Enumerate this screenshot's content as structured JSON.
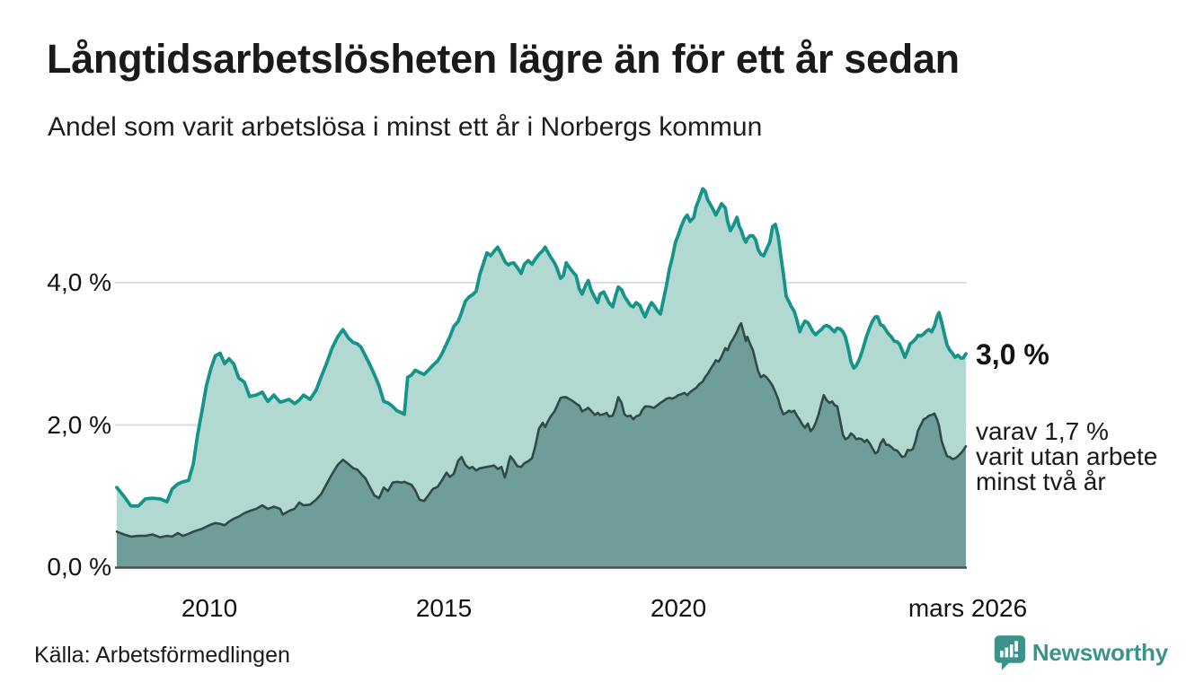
{
  "header": {
    "title": "Långtidsarbetslösheten lägre än för ett år sedan",
    "subtitle": "Andel som varit arbetslösa i minst ett år i Norbergs kommun"
  },
  "footer": {
    "source": "Källa: Arbetsförmedlingen",
    "logo_text": "Newsworthy",
    "logo_icon": "newsworthy-bubble-bar-chart-icon"
  },
  "colors": {
    "series1_line": "#17948a",
    "series1_fill": "#b2d8d2",
    "series2_line": "#2f4b48",
    "series2_fill": "#6f9e9a",
    "gridline": "#dedede",
    "axis_line": "#4d4d4d",
    "text": "#1a1a1a",
    "logo": "#3b948c",
    "background": "#ffffff"
  },
  "chart_data": {
    "type": "area",
    "title": "Långtidsarbetslösheten lägre än för ett år sedan",
    "subtitle": "Andel som varit arbetslösa i minst ett år i Norbergs kommun",
    "unit": "%",
    "grid": "horizontal-only",
    "x_range": [
      2008.03,
      2026.13
    ],
    "ylim": [
      0,
      5.5
    ],
    "y_ticks": [
      {
        "value": 0,
        "label": "0,0 %"
      },
      {
        "value": 2,
        "label": "2,0 %"
      },
      {
        "value": 4,
        "label": "4,0 %"
      }
    ],
    "x_ticks": [
      {
        "value": 2010,
        "label": "2010"
      },
      {
        "value": 2015,
        "label": "2015"
      },
      {
        "value": 2020,
        "label": "2020"
      },
      {
        "value": 2026.17,
        "label": "mars 2026"
      }
    ],
    "annotations": {
      "series1_end_label": "3,0 %",
      "series2_end_label_lines": [
        "varav 1,7 %",
        "varit utan arbete",
        "minst två år"
      ]
    },
    "series_meta": [
      {
        "name": "Andel som varit arbetslösa i minst ett år",
        "line": "#17948a",
        "fill": "#b2d8d2",
        "end_value": 3.0
      },
      {
        "name": "varav andel som varit utan arbete minst två år",
        "line": "#2f4b48",
        "fill": "#6f9e9a",
        "end_value": 1.7
      }
    ],
    "points": [
      [
        2008.03,
        1.12,
        0.5
      ],
      [
        2008.18,
        1.0,
        0.46
      ],
      [
        2008.33,
        0.86,
        0.43
      ],
      [
        2008.49,
        0.86,
        0.44
      ],
      [
        2008.64,
        0.96,
        0.44
      ],
      [
        2008.79,
        0.97,
        0.46
      ],
      [
        2008.95,
        0.96,
        0.42
      ],
      [
        2009.1,
        0.92,
        0.44
      ],
      [
        2009.21,
        1.1,
        0.43
      ],
      [
        2009.33,
        1.17,
        0.48
      ],
      [
        2009.44,
        1.2,
        0.44
      ],
      [
        2009.56,
        1.22,
        0.47
      ],
      [
        2009.66,
        1.45,
        0.5
      ],
      [
        2009.75,
        1.85,
        0.52
      ],
      [
        2009.85,
        2.21,
        0.54
      ],
      [
        2009.94,
        2.55,
        0.57
      ],
      [
        2010.04,
        2.8,
        0.6
      ],
      [
        2010.13,
        2.97,
        0.62
      ],
      [
        2010.23,
        3.01,
        0.61
      ],
      [
        2010.33,
        2.86,
        0.59
      ],
      [
        2010.42,
        2.93,
        0.64
      ],
      [
        2010.52,
        2.86,
        0.68
      ],
      [
        2010.63,
        2.66,
        0.71
      ],
      [
        2010.75,
        2.6,
        0.76
      ],
      [
        2010.86,
        2.4,
        0.79
      ],
      [
        2011.0,
        2.42,
        0.82
      ],
      [
        2011.13,
        2.46,
        0.87
      ],
      [
        2011.25,
        2.33,
        0.82
      ],
      [
        2011.38,
        2.42,
        0.85
      ],
      [
        2011.51,
        2.32,
        0.82
      ],
      [
        2011.57,
        2.33,
        0.74
      ],
      [
        2011.7,
        2.36,
        0.79
      ],
      [
        2011.82,
        2.3,
        0.82
      ],
      [
        2011.92,
        2.35,
        0.91
      ],
      [
        2012.01,
        2.42,
        0.87
      ],
      [
        2012.15,
        2.36,
        0.88
      ],
      [
        2012.28,
        2.49,
        0.95
      ],
      [
        2012.39,
        2.68,
        1.03
      ],
      [
        2012.51,
        2.88,
        1.18
      ],
      [
        2012.62,
        3.08,
        1.31
      ],
      [
        2012.74,
        3.24,
        1.44
      ],
      [
        2012.85,
        3.34,
        1.51
      ],
      [
        2012.97,
        3.22,
        1.45
      ],
      [
        2013.07,
        3.16,
        1.39
      ],
      [
        2013.16,
        3.14,
        1.37
      ],
      [
        2013.24,
        3.09,
        1.31
      ],
      [
        2013.33,
        2.97,
        1.25
      ],
      [
        2013.43,
        2.84,
        1.12
      ],
      [
        2013.52,
        2.71,
        1.01
      ],
      [
        2013.62,
        2.55,
        0.97
      ],
      [
        2013.72,
        2.33,
        1.12
      ],
      [
        2013.81,
        2.31,
        1.07
      ],
      [
        2013.91,
        2.26,
        1.19
      ],
      [
        2014.0,
        2.2,
        1.2
      ],
      [
        2014.1,
        2.17,
        1.19
      ],
      [
        2014.16,
        2.15,
        1.2
      ],
      [
        2014.23,
        2.67,
        1.18
      ],
      [
        2014.31,
        2.7,
        1.16
      ],
      [
        2014.39,
        2.77,
        1.08
      ],
      [
        2014.48,
        2.74,
        0.95
      ],
      [
        2014.58,
        2.71,
        0.93
      ],
      [
        2014.67,
        2.77,
        1.01
      ],
      [
        2014.77,
        2.84,
        1.1
      ],
      [
        2014.87,
        2.9,
        1.13
      ],
      [
        2014.96,
        3.0,
        1.22
      ],
      [
        2015.06,
        3.14,
        1.33
      ],
      [
        2015.13,
        3.24,
        1.27
      ],
      [
        2015.21,
        3.38,
        1.31
      ],
      [
        2015.31,
        3.46,
        1.5
      ],
      [
        2015.38,
        3.58,
        1.55
      ],
      [
        2015.46,
        3.74,
        1.44
      ],
      [
        2015.54,
        3.8,
        1.39
      ],
      [
        2015.61,
        3.83,
        1.41
      ],
      [
        2015.69,
        3.88,
        1.36
      ],
      [
        2015.77,
        4.12,
        1.39
      ],
      [
        2015.84,
        4.26,
        1.4
      ],
      [
        2015.92,
        4.42,
        1.41
      ],
      [
        2016.0,
        4.38,
        1.42
      ],
      [
        2016.07,
        4.44,
        1.43
      ],
      [
        2016.15,
        4.5,
        1.38
      ],
      [
        2016.23,
        4.4,
        1.41
      ],
      [
        2016.3,
        4.3,
        1.26
      ],
      [
        2016.34,
        4.27,
        1.35
      ],
      [
        2016.38,
        4.25,
        1.47
      ],
      [
        2016.42,
        4.27,
        1.56
      ],
      [
        2016.49,
        4.28,
        1.5
      ],
      [
        2016.57,
        4.21,
        1.42
      ],
      [
        2016.65,
        4.13,
        1.41
      ],
      [
        2016.72,
        4.26,
        1.46
      ],
      [
        2016.8,
        4.31,
        1.49
      ],
      [
        2016.88,
        4.26,
        1.53
      ],
      [
        2016.95,
        4.33,
        1.7
      ],
      [
        2017.03,
        4.4,
        1.95
      ],
      [
        2017.11,
        4.45,
        2.03
      ],
      [
        2017.16,
        4.5,
        1.97
      ],
      [
        2017.22,
        4.43,
        2.05
      ],
      [
        2017.28,
        4.36,
        2.12
      ],
      [
        2017.36,
        4.28,
        2.19
      ],
      [
        2017.41,
        4.21,
        2.26
      ],
      [
        2017.49,
        4.06,
        2.38
      ],
      [
        2017.55,
        4.1,
        2.39
      ],
      [
        2017.61,
        4.28,
        2.39
      ],
      [
        2017.66,
        4.23,
        2.37
      ],
      [
        2017.74,
        4.16,
        2.34
      ],
      [
        2017.82,
        4.1,
        2.3
      ],
      [
        2017.89,
        3.91,
        2.27
      ],
      [
        2017.95,
        3.84,
        2.19
      ],
      [
        2018.03,
        3.97,
        2.22
      ],
      [
        2018.08,
        4.03,
        2.24
      ],
      [
        2018.14,
        3.9,
        2.2
      ],
      [
        2018.22,
        3.79,
        2.14
      ],
      [
        2018.28,
        3.72,
        2.17
      ],
      [
        2018.33,
        3.84,
        2.14
      ],
      [
        2018.41,
        3.87,
        2.15
      ],
      [
        2018.47,
        3.79,
        2.17
      ],
      [
        2018.52,
        3.72,
        2.12
      ],
      [
        2018.6,
        3.66,
        2.13
      ],
      [
        2018.66,
        3.81,
        2.24
      ],
      [
        2018.72,
        3.94,
        2.39
      ],
      [
        2018.79,
        3.9,
        2.31
      ],
      [
        2018.85,
        3.81,
        2.15
      ],
      [
        2018.91,
        3.75,
        2.12
      ],
      [
        2018.98,
        3.68,
        2.13
      ],
      [
        2019.04,
        3.66,
        2.08
      ],
      [
        2019.1,
        3.72,
        2.12
      ],
      [
        2019.18,
        3.68,
        2.14
      ],
      [
        2019.23,
        3.6,
        2.21
      ],
      [
        2019.29,
        3.52,
        2.26
      ],
      [
        2019.37,
        3.65,
        2.26
      ],
      [
        2019.43,
        3.72,
        2.25
      ],
      [
        2019.48,
        3.68,
        2.24
      ],
      [
        2019.56,
        3.6,
        2.28
      ],
      [
        2019.62,
        3.56,
        2.31
      ],
      [
        2019.67,
        3.72,
        2.33
      ],
      [
        2019.75,
        3.97,
        2.37
      ],
      [
        2019.81,
        4.19,
        2.38
      ],
      [
        2019.87,
        4.35,
        2.37
      ],
      [
        2019.94,
        4.57,
        2.39
      ],
      [
        2020.0,
        4.67,
        2.42
      ],
      [
        2020.06,
        4.79,
        2.43
      ],
      [
        2020.13,
        4.9,
        2.45
      ],
      [
        2020.19,
        4.95,
        2.42
      ],
      [
        2020.25,
        4.86,
        2.46
      ],
      [
        2020.33,
        4.92,
        2.5
      ],
      [
        2020.38,
        5.07,
        2.52
      ],
      [
        2020.44,
        5.17,
        2.57
      ],
      [
        2020.52,
        5.32,
        2.61
      ],
      [
        2020.57,
        5.29,
        2.67
      ],
      [
        2020.63,
        5.16,
        2.72
      ],
      [
        2020.69,
        5.09,
        2.79
      ],
      [
        2020.75,
        5.02,
        2.85
      ],
      [
        2020.8,
        4.95,
        2.91
      ],
      [
        2020.86,
        5.03,
        2.89
      ],
      [
        2020.92,
        5.11,
        2.96
      ],
      [
        2021.0,
        5.05,
        3.08
      ],
      [
        2021.05,
        4.86,
        3.05
      ],
      [
        2021.11,
        4.73,
        3.15
      ],
      [
        2021.17,
        4.8,
        3.21
      ],
      [
        2021.25,
        4.92,
        3.31
      ],
      [
        2021.3,
        4.79,
        3.39
      ],
      [
        2021.34,
        4.74,
        3.43
      ],
      [
        2021.4,
        4.62,
        3.28
      ],
      [
        2021.44,
        4.57,
        3.18
      ],
      [
        2021.47,
        4.62,
        3.24
      ],
      [
        2021.53,
        4.66,
        3.14
      ],
      [
        2021.59,
        4.66,
        3.05
      ],
      [
        2021.65,
        4.6,
        2.89
      ],
      [
        2021.7,
        4.47,
        2.76
      ],
      [
        2021.76,
        4.4,
        2.67
      ],
      [
        2021.82,
        4.38,
        2.7
      ],
      [
        2021.88,
        4.47,
        2.67
      ],
      [
        2021.95,
        4.57,
        2.61
      ],
      [
        2022.01,
        4.79,
        2.55
      ],
      [
        2022.07,
        4.82,
        2.46
      ],
      [
        2022.13,
        4.65,
        2.36
      ],
      [
        2022.18,
        4.4,
        2.24
      ],
      [
        2022.24,
        4.12,
        2.15
      ],
      [
        2022.3,
        3.81,
        2.17
      ],
      [
        2022.36,
        3.73,
        2.2
      ],
      [
        2022.41,
        3.66,
        2.18
      ],
      [
        2022.47,
        3.6,
        2.2
      ],
      [
        2022.53,
        3.47,
        2.13
      ],
      [
        2022.59,
        3.31,
        2.07
      ],
      [
        2022.64,
        3.39,
        2.01
      ],
      [
        2022.7,
        3.46,
        1.96
      ],
      [
        2022.76,
        3.44,
        2.02
      ],
      [
        2022.82,
        3.37,
        1.91
      ],
      [
        2022.87,
        3.31,
        1.95
      ],
      [
        2022.93,
        3.27,
        2.03
      ],
      [
        2022.99,
        3.31,
        2.15
      ],
      [
        2023.05,
        3.34,
        2.3
      ],
      [
        2023.1,
        3.38,
        2.42
      ],
      [
        2023.16,
        3.4,
        2.35
      ],
      [
        2023.22,
        3.38,
        2.31
      ],
      [
        2023.28,
        3.34,
        2.33
      ],
      [
        2023.33,
        3.31,
        2.28
      ],
      [
        2023.39,
        3.36,
        2.26
      ],
      [
        2023.45,
        3.35,
        2.06
      ],
      [
        2023.51,
        3.31,
        1.86
      ],
      [
        2023.56,
        3.24,
        1.8
      ],
      [
        2023.62,
        3.08,
        1.82
      ],
      [
        2023.68,
        2.89,
        1.88
      ],
      [
        2023.74,
        2.8,
        1.85
      ],
      [
        2023.79,
        2.83,
        1.8
      ],
      [
        2023.85,
        2.91,
        1.81
      ],
      [
        2023.91,
        3.02,
        1.8
      ],
      [
        2023.97,
        3.15,
        1.76
      ],
      [
        2024.02,
        3.26,
        1.79
      ],
      [
        2024.08,
        3.37,
        1.74
      ],
      [
        2024.14,
        3.46,
        1.67
      ],
      [
        2024.2,
        3.52,
        1.6
      ],
      [
        2024.25,
        3.52,
        1.62
      ],
      [
        2024.31,
        3.41,
        1.74
      ],
      [
        2024.37,
        3.39,
        1.8
      ],
      [
        2024.43,
        3.33,
        1.72
      ],
      [
        2024.48,
        3.28,
        1.72
      ],
      [
        2024.54,
        3.24,
        1.69
      ],
      [
        2024.6,
        3.18,
        1.65
      ],
      [
        2024.66,
        3.17,
        1.64
      ],
      [
        2024.71,
        3.14,
        1.6
      ],
      [
        2024.77,
        3.05,
        1.55
      ],
      [
        2024.83,
        2.95,
        1.56
      ],
      [
        2024.89,
        3.05,
        1.65
      ],
      [
        2024.94,
        3.14,
        1.64
      ],
      [
        2025.0,
        3.17,
        1.66
      ],
      [
        2025.06,
        3.21,
        1.78
      ],
      [
        2025.11,
        3.26,
        1.92
      ],
      [
        2025.17,
        3.25,
        2.0
      ],
      [
        2025.23,
        3.28,
        2.08
      ],
      [
        2025.29,
        3.32,
        2.1
      ],
      [
        2025.34,
        3.34,
        2.13
      ],
      [
        2025.4,
        3.31,
        2.14
      ],
      [
        2025.46,
        3.39,
        2.16
      ],
      [
        2025.52,
        3.53,
        2.07
      ],
      [
        2025.56,
        3.58,
        1.98
      ],
      [
        2025.61,
        3.45,
        1.78
      ],
      [
        2025.67,
        3.28,
        1.66
      ],
      [
        2025.73,
        3.12,
        1.56
      ],
      [
        2025.79,
        3.05,
        1.55
      ],
      [
        2025.84,
        3.01,
        1.52
      ],
      [
        2025.9,
        2.95,
        1.53
      ],
      [
        2025.96,
        2.98,
        1.56
      ],
      [
        2026.02,
        2.94,
        1.6
      ],
      [
        2026.07,
        2.94,
        1.64
      ],
      [
        2026.13,
        3.0,
        1.7
      ]
    ]
  }
}
